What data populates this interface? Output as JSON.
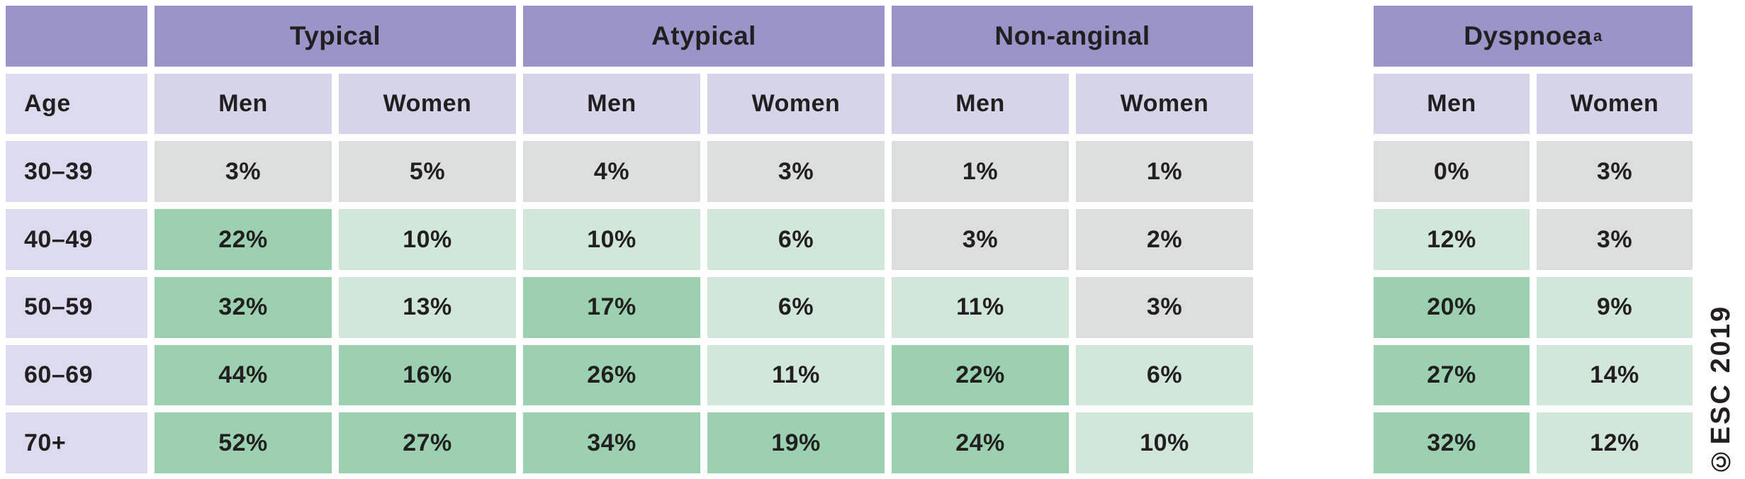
{
  "palette": {
    "background": "#ffffff",
    "header_purple": "#9995c9",
    "light_purple": "#d6d4e9",
    "age_purple": "#dcdaee",
    "gray_cell": "#dcdddd",
    "light_green": "#d1e7da",
    "medium_green": "#9bd1b1",
    "text": "#231f20"
  },
  "table": {
    "age_header": "Age",
    "sex_labels": {
      "men": "Men",
      "women": "Women"
    },
    "group_headers": [
      {
        "label": "Typical"
      },
      {
        "label": "Atypical"
      },
      {
        "label": "Non-anginal"
      },
      {
        "label": "Dyspnoea",
        "superscript": "a"
      }
    ],
    "rows": [
      {
        "age": "30–39",
        "cells": [
          {
            "value": "3%",
            "level": "low"
          },
          {
            "value": "5%",
            "level": "low"
          },
          {
            "value": "4%",
            "level": "low"
          },
          {
            "value": "3%",
            "level": "low"
          },
          {
            "value": "1%",
            "level": "low"
          },
          {
            "value": "1%",
            "level": "low"
          },
          {
            "value": "0%",
            "level": "low"
          },
          {
            "value": "3%",
            "level": "low"
          }
        ]
      },
      {
        "age": "40–49",
        "cells": [
          {
            "value": "22%",
            "level": "high"
          },
          {
            "value": "10%",
            "level": "mid"
          },
          {
            "value": "10%",
            "level": "mid"
          },
          {
            "value": "6%",
            "level": "mid"
          },
          {
            "value": "3%",
            "level": "low"
          },
          {
            "value": "2%",
            "level": "low"
          },
          {
            "value": "12%",
            "level": "mid"
          },
          {
            "value": "3%",
            "level": "low"
          }
        ]
      },
      {
        "age": "50–59",
        "cells": [
          {
            "value": "32%",
            "level": "high"
          },
          {
            "value": "13%",
            "level": "mid"
          },
          {
            "value": "17%",
            "level": "high"
          },
          {
            "value": "6%",
            "level": "mid"
          },
          {
            "value": "11%",
            "level": "mid"
          },
          {
            "value": "3%",
            "level": "low"
          },
          {
            "value": "20%",
            "level": "high"
          },
          {
            "value": "9%",
            "level": "mid"
          }
        ]
      },
      {
        "age": "60–69",
        "cells": [
          {
            "value": "44%",
            "level": "high"
          },
          {
            "value": "16%",
            "level": "high"
          },
          {
            "value": "26%",
            "level": "high"
          },
          {
            "value": "11%",
            "level": "mid"
          },
          {
            "value": "22%",
            "level": "high"
          },
          {
            "value": "6%",
            "level": "mid"
          },
          {
            "value": "27%",
            "level": "high"
          },
          {
            "value": "14%",
            "level": "mid"
          }
        ]
      },
      {
        "age": "70+",
        "cells": [
          {
            "value": "52%",
            "level": "high"
          },
          {
            "value": "27%",
            "level": "high"
          },
          {
            "value": "34%",
            "level": "high"
          },
          {
            "value": "19%",
            "level": "high"
          },
          {
            "value": "24%",
            "level": "high"
          },
          {
            "value": "10%",
            "level": "mid"
          },
          {
            "value": "32%",
            "level": "high"
          },
          {
            "value": "12%",
            "level": "mid"
          }
        ]
      }
    ]
  },
  "watermark": "©ESC 2019"
}
